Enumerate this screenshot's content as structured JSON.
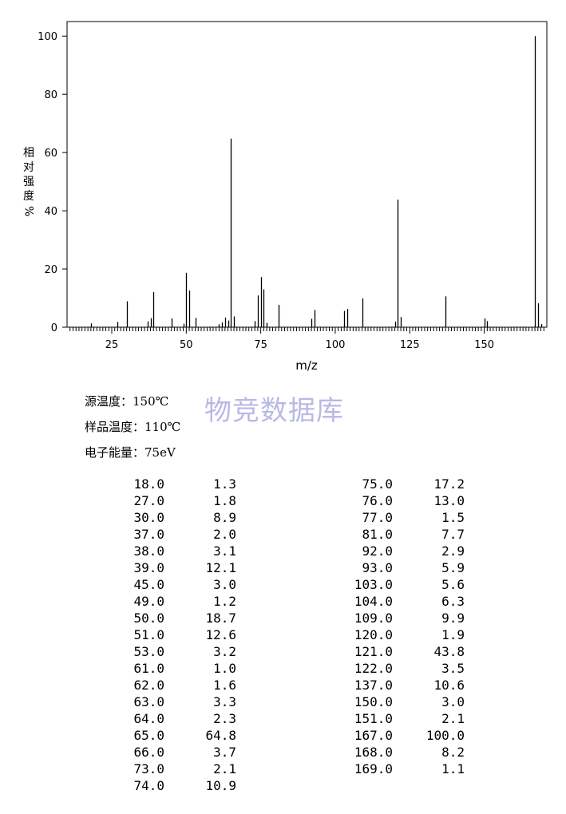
{
  "chart_data": {
    "type": "bar",
    "title": "",
    "xlabel": "m/z",
    "ylabel": "相对强度%",
    "ylabel_chars": [
      "相",
      "对",
      "强",
      "度",
      "%"
    ],
    "xlim": [
      10,
      171
    ],
    "ylim": [
      0,
      105
    ],
    "xticks": [
      25,
      50,
      75,
      100,
      125,
      150
    ],
    "yticks": [
      0,
      20,
      40,
      60,
      80,
      100
    ],
    "grid": false,
    "peaks": [
      {
        "mz": 18,
        "abundance": 1.3
      },
      {
        "mz": 27,
        "abundance": 1.8
      },
      {
        "mz": 30,
        "abundance": 8.9
      },
      {
        "mz": 37,
        "abundance": 2.0
      },
      {
        "mz": 38,
        "abundance": 3.1
      },
      {
        "mz": 39,
        "abundance": 12.1
      },
      {
        "mz": 45,
        "abundance": 3.0
      },
      {
        "mz": 49,
        "abundance": 1.2
      },
      {
        "mz": 50,
        "abundance": 18.7
      },
      {
        "mz": 51,
        "abundance": 12.6
      },
      {
        "mz": 53,
        "abundance": 3.2
      },
      {
        "mz": 61,
        "abundance": 1.0
      },
      {
        "mz": 62,
        "abundance": 1.6
      },
      {
        "mz": 63,
        "abundance": 3.3
      },
      {
        "mz": 64,
        "abundance": 2.3
      },
      {
        "mz": 65,
        "abundance": 64.8
      },
      {
        "mz": 66,
        "abundance": 3.7
      },
      {
        "mz": 73,
        "abundance": 2.1
      },
      {
        "mz": 74,
        "abundance": 10.9
      },
      {
        "mz": 75,
        "abundance": 17.2
      },
      {
        "mz": 76,
        "abundance": 13.0
      },
      {
        "mz": 77,
        "abundance": 1.5
      },
      {
        "mz": 81,
        "abundance": 7.7
      },
      {
        "mz": 92,
        "abundance": 2.9
      },
      {
        "mz": 93,
        "abundance": 5.9
      },
      {
        "mz": 103,
        "abundance": 5.6
      },
      {
        "mz": 104,
        "abundance": 6.3
      },
      {
        "mz": 109,
        "abundance": 9.9
      },
      {
        "mz": 120,
        "abundance": 1.9
      },
      {
        "mz": 121,
        "abundance": 43.8
      },
      {
        "mz": 122,
        "abundance": 3.5
      },
      {
        "mz": 137,
        "abundance": 10.6
      },
      {
        "mz": 150,
        "abundance": 3.0
      },
      {
        "mz": 151,
        "abundance": 2.1
      },
      {
        "mz": 167,
        "abundance": 100.0
      },
      {
        "mz": 168,
        "abundance": 8.2
      },
      {
        "mz": 169,
        "abundance": 1.1
      }
    ]
  },
  "conditions": [
    {
      "label": "源温度：",
      "value": "150℃"
    },
    {
      "label": "样品温度：",
      "value": "110℃"
    },
    {
      "label": "电子能量：",
      "value": "75eV"
    }
  ],
  "watermark": "物竞数据库",
  "table": {
    "left": [
      [
        "18.0",
        "1.3"
      ],
      [
        "27.0",
        "1.8"
      ],
      [
        "30.0",
        "8.9"
      ],
      [
        "37.0",
        "2.0"
      ],
      [
        "38.0",
        "3.1"
      ],
      [
        "39.0",
        "12.1"
      ],
      [
        "45.0",
        "3.0"
      ],
      [
        "49.0",
        "1.2"
      ],
      [
        "50.0",
        "18.7"
      ],
      [
        "51.0",
        "12.6"
      ],
      [
        "53.0",
        "3.2"
      ],
      [
        "61.0",
        "1.0"
      ],
      [
        "62.0",
        "1.6"
      ],
      [
        "63.0",
        "3.3"
      ],
      [
        "64.0",
        "2.3"
      ],
      [
        "65.0",
        "64.8"
      ],
      [
        "66.0",
        "3.7"
      ],
      [
        "73.0",
        "2.1"
      ],
      [
        "74.0",
        "10.9"
      ]
    ],
    "right": [
      [
        "75.0",
        "17.2"
      ],
      [
        "76.0",
        "13.0"
      ],
      [
        "77.0",
        "1.5"
      ],
      [
        "81.0",
        "7.7"
      ],
      [
        "92.0",
        "2.9"
      ],
      [
        "93.0",
        "5.9"
      ],
      [
        "103.0",
        "5.6"
      ],
      [
        "104.0",
        "6.3"
      ],
      [
        "109.0",
        "9.9"
      ],
      [
        "120.0",
        "1.9"
      ],
      [
        "121.0",
        "43.8"
      ],
      [
        "122.0",
        "3.5"
      ],
      [
        "137.0",
        "10.6"
      ],
      [
        "150.0",
        "3.0"
      ],
      [
        "151.0",
        "2.1"
      ],
      [
        "167.0",
        "100.0"
      ],
      [
        "168.0",
        "8.2"
      ],
      [
        "169.0",
        "1.1"
      ]
    ]
  }
}
